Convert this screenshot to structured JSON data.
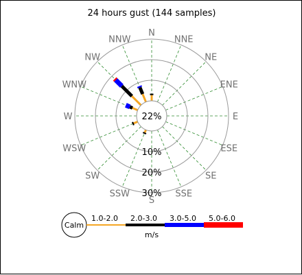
{
  "chart_data": {
    "type": "windrose",
    "title": "24 hours gust (144 samples)",
    "calm_percent_label": "22%",
    "directions": [
      "N",
      "NNE",
      "NE",
      "ENE",
      "E",
      "ESE",
      "SE",
      "SSE",
      "S",
      "SSW",
      "SW",
      "WSW",
      "W",
      "WNW",
      "NW",
      "NNW"
    ],
    "ring_labels": [
      "10%",
      "20%",
      "30%"
    ],
    "rings_percent": [
      10,
      20,
      30
    ],
    "calm_percent": 22,
    "unit": "m/s",
    "calm_label": "Calm",
    "bins": [
      {
        "label": "1.0-2.0",
        "color": "#f5a623"
      },
      {
        "label": "2.0-3.0",
        "color": "#000000"
      },
      {
        "label": "3.0-5.0",
        "color": "#0000ff"
      },
      {
        "label": "5.0-6.0",
        "color": "#ff0000"
      }
    ],
    "series": [
      {
        "direction": "N",
        "values": [
          4,
          1,
          0,
          0
        ]
      },
      {
        "direction": "NNW",
        "values": [
          6,
          5,
          1,
          0
        ]
      },
      {
        "direction": "NW",
        "values": [
          9,
          10,
          6,
          1
        ]
      },
      {
        "direction": "WNW",
        "values": [
          4,
          2,
          3,
          0
        ]
      },
      {
        "direction": "WSW",
        "values": [
          3,
          1,
          0,
          0
        ]
      },
      {
        "direction": "SSW",
        "values": [
          2,
          1,
          0,
          0
        ]
      }
    ]
  }
}
